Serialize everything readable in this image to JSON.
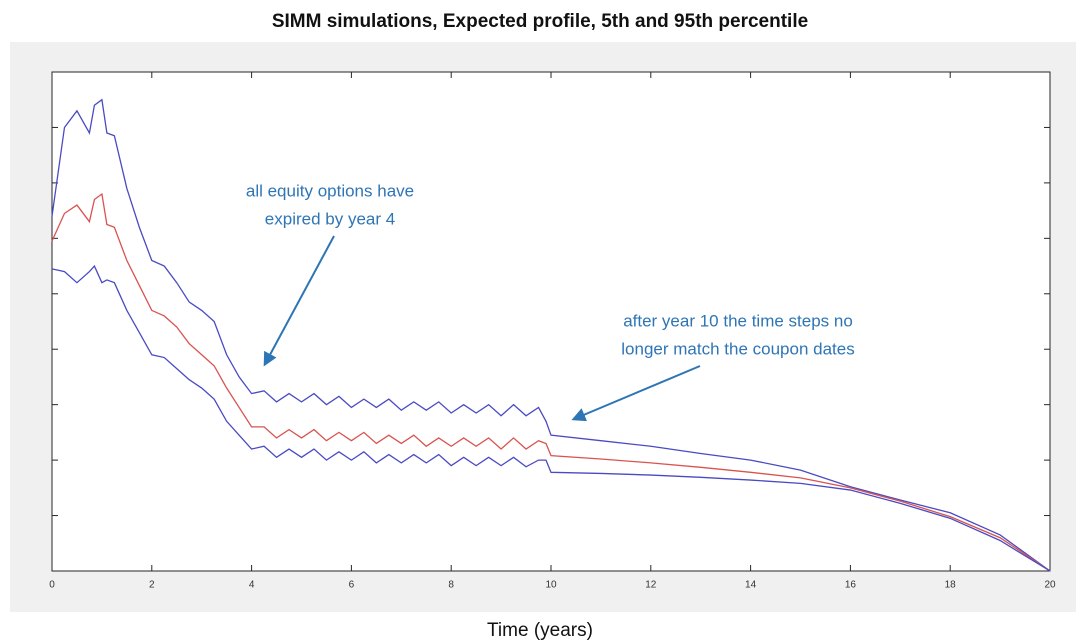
{
  "chart_data": {
    "type": "line",
    "title": "SIMM simulations, Expected profile, 5th and 95th percentile",
    "xlabel": "Time (years)",
    "x": [
      0,
      0.25,
      0.5,
      0.75,
      0.85,
      1.0,
      1.1,
      1.25,
      1.5,
      1.75,
      2.0,
      2.25,
      2.5,
      2.75,
      3.0,
      3.25,
      3.5,
      3.75,
      4.0,
      4.25,
      4.5,
      4.75,
      5.0,
      5.25,
      5.5,
      5.75,
      6.0,
      6.25,
      6.5,
      6.75,
      7.0,
      7.25,
      7.5,
      7.75,
      8.0,
      8.25,
      8.5,
      8.75,
      9.0,
      9.25,
      9.5,
      9.75,
      9.9,
      10,
      11,
      12,
      13,
      14,
      15,
      16,
      17,
      18,
      19,
      20
    ],
    "series": [
      {
        "color": "#4a4ac4",
        "values": [
          6.4,
          8.0,
          8.3,
          7.9,
          8.4,
          8.5,
          7.9,
          7.85,
          6.9,
          6.2,
          5.6,
          5.5,
          5.2,
          4.85,
          4.7,
          4.5,
          3.9,
          3.5,
          3.2,
          3.25,
          3.05,
          3.2,
          3.05,
          3.2,
          3.0,
          3.15,
          2.95,
          3.1,
          2.95,
          3.1,
          2.9,
          3.05,
          2.9,
          3.05,
          2.85,
          3.0,
          2.85,
          3.0,
          2.8,
          3.0,
          2.8,
          2.95,
          2.7,
          2.45,
          2.35,
          2.25,
          2.12,
          2.0,
          1.82,
          1.52,
          1.28,
          1.05,
          0.65,
          0
        ]
      },
      {
        "color": "#d9534f",
        "values": [
          5.95,
          6.45,
          6.6,
          6.3,
          6.7,
          6.8,
          6.25,
          6.2,
          5.6,
          5.15,
          4.7,
          4.6,
          4.4,
          4.1,
          3.9,
          3.7,
          3.3,
          2.95,
          2.6,
          2.6,
          2.4,
          2.55,
          2.4,
          2.55,
          2.35,
          2.5,
          2.35,
          2.5,
          2.3,
          2.45,
          2.3,
          2.45,
          2.25,
          2.4,
          2.25,
          2.4,
          2.25,
          2.4,
          2.2,
          2.4,
          2.2,
          2.35,
          2.3,
          2.08,
          2.02,
          1.95,
          1.87,
          1.78,
          1.68,
          1.5,
          1.26,
          0.98,
          0.6,
          0
        ]
      },
      {
        "color": "#4a4ac4",
        "values": [
          5.45,
          5.4,
          5.2,
          5.4,
          5.5,
          5.2,
          5.25,
          5.2,
          4.7,
          4.3,
          3.9,
          3.85,
          3.65,
          3.45,
          3.3,
          3.1,
          2.7,
          2.45,
          2.2,
          2.25,
          2.05,
          2.2,
          2.05,
          2.2,
          2.0,
          2.15,
          2.0,
          2.15,
          1.95,
          2.1,
          1.95,
          2.1,
          1.95,
          2.1,
          1.9,
          2.05,
          1.9,
          2.05,
          1.9,
          2.05,
          1.88,
          2.0,
          2.0,
          1.78,
          1.76,
          1.73,
          1.69,
          1.64,
          1.58,
          1.46,
          1.22,
          0.95,
          0.55,
          0
        ]
      }
    ],
    "xlim": [
      0,
      20
    ],
    "xticks": [
      0,
      2,
      4,
      6,
      8,
      10,
      12,
      14,
      16,
      18,
      20
    ],
    "ylim": [
      0,
      9
    ],
    "yticks": [
      1,
      2,
      3,
      4,
      5,
      6,
      7,
      8
    ],
    "ytick_labels": false,
    "annotations": [
      {
        "lines": [
          "all equity options have",
          "expired by year 4"
        ]
      },
      {
        "lines": [
          "after year 10 the time steps no",
          "longer match the coupon dates"
        ]
      }
    ]
  }
}
